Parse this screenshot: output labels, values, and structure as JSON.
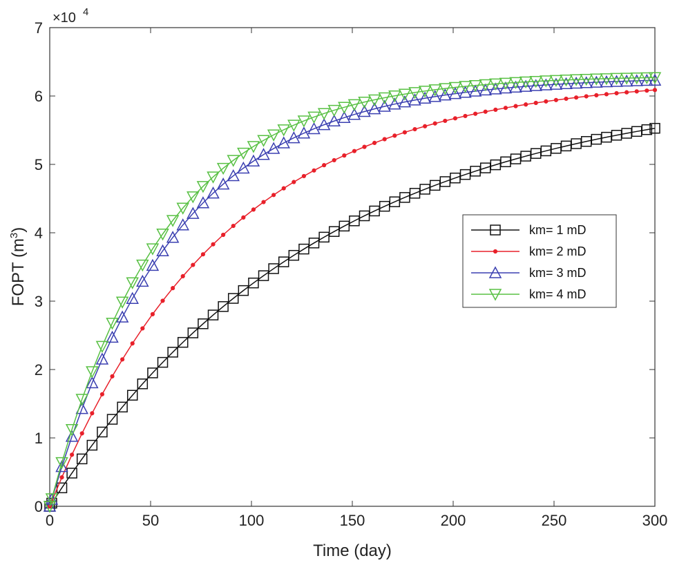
{
  "chart_data": {
    "type": "line",
    "title": "",
    "xlabel": "Time (day)",
    "ylabel_main": "FOPT (m",
    "ylabel_sup": "3",
    "ylabel_close": ")",
    "y_exponent_prefix": "×10",
    "y_exponent_power": "4",
    "xlim": [
      0,
      300
    ],
    "ylim": [
      0,
      70000
    ],
    "xticks": [
      0,
      50,
      100,
      150,
      200,
      250,
      300
    ],
    "xtick_labels": [
      "0",
      "50",
      "100",
      "150",
      "200",
      "250",
      "300"
    ],
    "yticks": [
      0,
      10000,
      20000,
      30000,
      40000,
      50000,
      60000,
      70000
    ],
    "ytick_labels": [
      "0",
      "1",
      "2",
      "3",
      "4",
      "5",
      "6",
      "7"
    ],
    "legend_position": "center-right",
    "series": [
      {
        "name": "km= 1 mD",
        "color": "#111111",
        "marker": "square",
        "amplitude": 62000,
        "tau": 135
      },
      {
        "name": "km= 2 mD",
        "color": "#e8202a",
        "marker": "dot",
        "amplitude": 62800,
        "tau": 86
      },
      {
        "name": "km= 3 mD",
        "color": "#3a3fb0",
        "marker": "triangle-up",
        "amplitude": 62800,
        "tau": 62
      },
      {
        "name": "km= 4 mD",
        "color": "#58c043",
        "marker": "triangle-down",
        "amplitude": 63000,
        "tau": 56
      }
    ],
    "x_values_note": "marker every ~5 days from 0 to 300; y = amplitude*(1-exp(-x/tau))"
  }
}
